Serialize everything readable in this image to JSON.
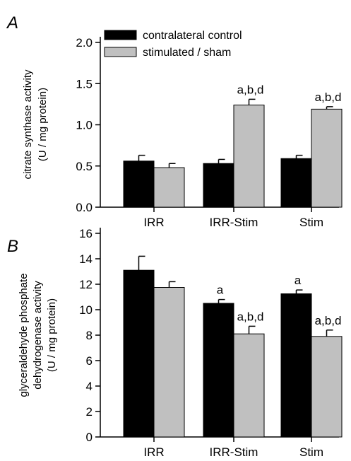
{
  "chart_data": [
    {
      "type": "bar",
      "panel_label": "A",
      "categories": [
        "IRR",
        "IRR-Stim",
        "Stim"
      ],
      "ylabel": [
        "citrate synthase activity",
        "(U / mg protein)"
      ],
      "ylim": [
        0,
        2.0
      ],
      "yticks": [
        "0.0",
        "0.5",
        "1.0",
        "1.5",
        "2.0"
      ],
      "ytick_values": [
        0,
        0.5,
        1.0,
        1.5,
        2.0
      ],
      "legend_position": "top-left",
      "series": [
        {
          "name": "contralateral control",
          "color": "#000000",
          "values": [
            0.56,
            0.53,
            0.59
          ],
          "errors": [
            0.07,
            0.05,
            0.04
          ],
          "annotations": [
            "",
            "",
            ""
          ]
        },
        {
          "name": "stimulated / sham",
          "color": "#c0c0c0",
          "values": [
            0.48,
            1.24,
            1.19
          ],
          "errors": [
            0.05,
            0.07,
            0.03
          ],
          "annotations": [
            "",
            "a,b,d",
            "a,b,d"
          ]
        }
      ]
    },
    {
      "type": "bar",
      "panel_label": "B",
      "categories": [
        "IRR",
        "IRR-Stim",
        "Stim"
      ],
      "ylabel": [
        "glyceraldehyde phosphate",
        "dehydrogenase activity",
        "(U / mg protein)"
      ],
      "ylim": [
        0,
        16
      ],
      "yticks": [
        "0",
        "2",
        "4",
        "6",
        "8",
        "10",
        "12",
        "14",
        "16"
      ],
      "ytick_values": [
        0,
        2,
        4,
        6,
        8,
        10,
        12,
        14,
        16
      ],
      "series": [
        {
          "name": "contralateral control",
          "color": "#000000",
          "values": [
            13.1,
            10.5,
            11.25
          ],
          "errors": [
            1.1,
            0.3,
            0.3
          ],
          "annotations": [
            "",
            "a",
            "a"
          ]
        },
        {
          "name": "stimulated / sham",
          "color": "#c0c0c0",
          "values": [
            11.75,
            8.1,
            7.9
          ],
          "errors": [
            0.45,
            0.6,
            0.5
          ],
          "annotations": [
            "",
            "a,b,d",
            "a,b,d"
          ]
        }
      ]
    }
  ]
}
